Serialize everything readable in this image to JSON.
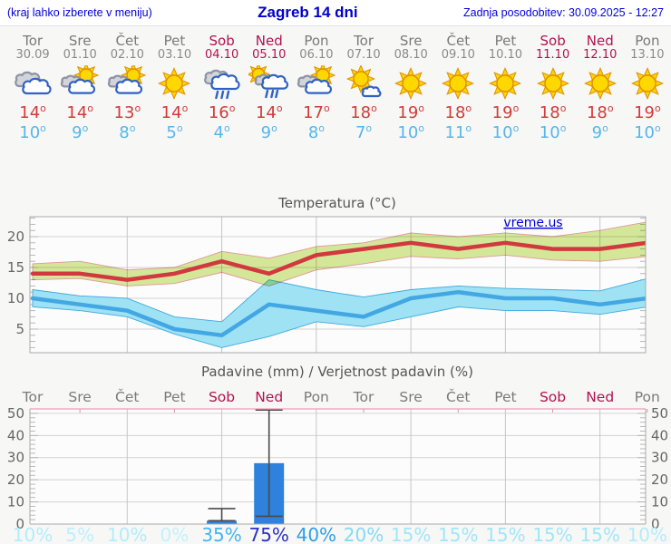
{
  "header": {
    "left_note": "(kraj lahko izberete v meniju)",
    "title": "Zagreb 14 dni",
    "updated": "Zadnja posodobitev: 30.09.2025 - 12:27"
  },
  "colors": {
    "weekend": "#b3124f",
    "weekday": "#7a7a7a",
    "tmax": "#d23b3b",
    "tmin": "#56b6ec",
    "max_line": "#d2383f",
    "max_band_fill": "#d7ea9b",
    "max_band_edge": "#e5989a",
    "min_line": "#42a7e2",
    "min_band_fill": "#9fe2f4",
    "min_band_edge": "#3fa8e0",
    "bar_fill": "#2e81dc",
    "whisker": "#4a4a4a",
    "grid": "#d2d2d2",
    "frame": "#aaaaaa",
    "precip_top_border": "#ef9db5",
    "axis_text": "#666666",
    "title_text": "#555555",
    "watermark_blue": "#0000dd",
    "prob_color_map": {
      "0": "#c3f1fc",
      "5": "#bdeffc",
      "10": "#b2ecfb",
      "15": "#a0e6fa",
      "20": "#82daf7",
      "35": "#44b6f1",
      "40": "#2f9fe8",
      "75": "#2b2fc5"
    }
  },
  "days": [
    {
      "name": "Tor",
      "date": "30.09",
      "weekend": false,
      "icon": "cloudy",
      "tmax": 14,
      "tmin": 10,
      "prob": 10
    },
    {
      "name": "Sre",
      "date": "01.10",
      "weekend": false,
      "icon": "partly",
      "tmax": 14,
      "tmin": 9,
      "prob": 5
    },
    {
      "name": "Čet",
      "date": "02.10",
      "weekend": false,
      "icon": "partly",
      "tmax": 13,
      "tmin": 8,
      "prob": 10
    },
    {
      "name": "Pet",
      "date": "03.10",
      "weekend": false,
      "icon": "sunny",
      "tmax": 14,
      "tmin": 5,
      "prob": 0
    },
    {
      "name": "Sob",
      "date": "04.10",
      "weekend": true,
      "icon": "rain",
      "tmax": 16,
      "tmin": 4,
      "prob": 35
    },
    {
      "name": "Ned",
      "date": "05.10",
      "weekend": true,
      "icon": "sun-rain",
      "tmax": 14,
      "tmin": 9,
      "prob": 75
    },
    {
      "name": "Pon",
      "date": "06.10",
      "weekend": false,
      "icon": "partly",
      "tmax": 17,
      "tmin": 8,
      "prob": 40
    },
    {
      "name": "Tor",
      "date": "07.10",
      "weekend": false,
      "icon": "mostly-sunny",
      "tmax": 18,
      "tmin": 7,
      "prob": 20
    },
    {
      "name": "Sre",
      "date": "08.10",
      "weekend": false,
      "icon": "sunny",
      "tmax": 19,
      "tmin": 10,
      "prob": 15
    },
    {
      "name": "Čet",
      "date": "09.10",
      "weekend": false,
      "icon": "sunny",
      "tmax": 18,
      "tmin": 11,
      "prob": 15
    },
    {
      "name": "Pet",
      "date": "10.10",
      "weekend": false,
      "icon": "sunny",
      "tmax": 19,
      "tmin": 10,
      "prob": 15
    },
    {
      "name": "Sob",
      "date": "11.10",
      "weekend": true,
      "icon": "sunny",
      "tmax": 18,
      "tmin": 10,
      "prob": 15
    },
    {
      "name": "Ned",
      "date": "12.10",
      "weekend": true,
      "icon": "sunny",
      "tmax": 18,
      "tmin": 9,
      "prob": 15
    },
    {
      "name": "Pon",
      "date": "13.10",
      "weekend": false,
      "icon": "sunny",
      "tmax": 19,
      "tmin": 10,
      "prob": 10
    }
  ],
  "chart_data": [
    {
      "type": "line",
      "title": "Temperatura (°C)",
      "watermark": "vreme.us",
      "categories": [
        "Tor 30.09",
        "Sre 01.10",
        "Čet 02.10",
        "Pet 03.10",
        "Sob 04.10",
        "Ned 05.10",
        "Pon 06.10",
        "Tor 07.10",
        "Sre 08.10",
        "Čet 09.10",
        "Pet 10.10",
        "Sob 11.10",
        "Ned 12.10",
        "Pon 13.10"
      ],
      "ylim": [
        1.2,
        23.2
      ],
      "yticks": [
        5,
        10,
        15,
        20
      ],
      "grid": true,
      "legend_position": "none",
      "series": [
        {
          "name": "max temperatura",
          "values": [
            14,
            14,
            13,
            14,
            16,
            14,
            17,
            18,
            19,
            18,
            19,
            18,
            18,
            19
          ]
        },
        {
          "name": "max zgornja meja",
          "values": [
            15.6,
            16,
            14.6,
            15,
            17.6,
            16.5,
            18.4,
            19,
            20.6,
            20,
            20.6,
            20,
            21,
            22.4
          ]
        },
        {
          "name": "max spodnja meja",
          "values": [
            13,
            13.2,
            12,
            12.4,
            14.2,
            12,
            14.6,
            15.6,
            16.8,
            16.4,
            17,
            16.2,
            16,
            16.8
          ]
        },
        {
          "name": "min temperatura",
          "values": [
            10,
            9,
            8,
            5,
            4,
            9,
            8,
            7,
            10,
            11,
            10,
            10,
            9,
            10
          ]
        },
        {
          "name": "min zgornja meja",
          "values": [
            11.4,
            10.4,
            10,
            7,
            6.2,
            13,
            11.4,
            10.2,
            11.4,
            12,
            11.6,
            11.4,
            11.2,
            13.2
          ]
        },
        {
          "name": "min spodnja meja",
          "values": [
            8.6,
            8,
            7,
            4.2,
            2,
            3.8,
            6.2,
            5.4,
            7,
            8.6,
            8,
            8,
            7.4,
            8.6
          ]
        }
      ]
    },
    {
      "type": "bar",
      "title": "Padavine (mm) / Verjetnost padavin (%)",
      "categories": [
        "Tor",
        "Sre",
        "Čet",
        "Pet",
        "Sob",
        "Ned",
        "Pon",
        "Tor",
        "Sre",
        "Čet",
        "Pet",
        "Sob",
        "Ned",
        "Pon"
      ],
      "values": [
        0,
        0,
        0,
        0,
        1.5,
        27.5,
        0,
        0,
        0,
        0,
        0,
        0,
        0,
        0
      ],
      "whiskers": [
        {
          "index": 4,
          "low": 1.5,
          "high": 7
        },
        {
          "index": 5,
          "low": 3.5,
          "high": 51.5
        }
      ],
      "probabilities_pct": [
        10,
        5,
        10,
        0,
        35,
        75,
        40,
        20,
        15,
        15,
        15,
        15,
        15,
        10
      ],
      "ylim": [
        0,
        52
      ],
      "yticks": [
        0,
        10,
        20,
        30,
        40,
        50
      ],
      "grid": true,
      "ylabel_left_and_right": true
    }
  ]
}
